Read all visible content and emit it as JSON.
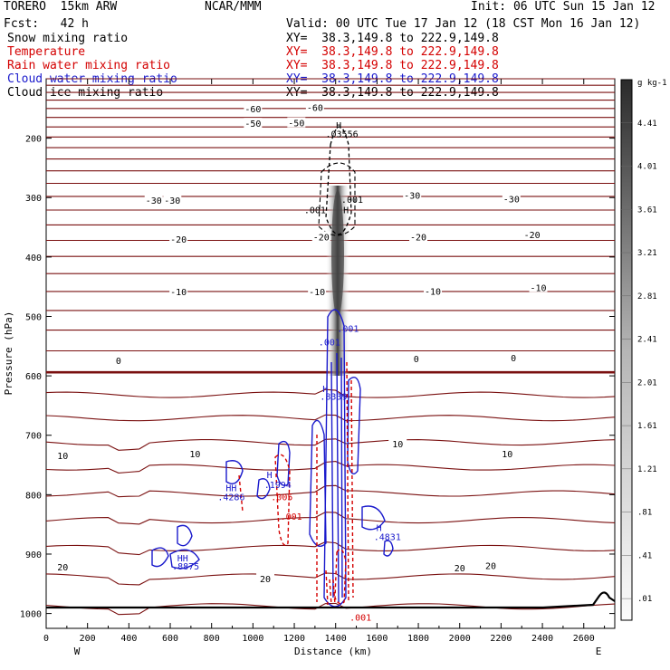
{
  "header": {
    "model": "TORERO  15km ARW",
    "org": "NCAR/MMM",
    "init": "Init: 06 UTC Sun 15 Jan 12",
    "fcst": "Fcst:   42 h",
    "valid": "Valid: 00 UTC Tue 17 Jan 12 (18 CST Mon 16 Jan 12)"
  },
  "legend": [
    {
      "label": "Snow mixing ratio",
      "xy": "XY=  38.3,149.8 to 222.9,149.8",
      "color": "#000000"
    },
    {
      "label": "Temperature",
      "xy": "XY=  38.3,149.8 to 222.9,149.8",
      "color": "#d40000"
    },
    {
      "label": "Rain water mixing ratio",
      "xy": "XY=  38.3,149.8 to 222.9,149.8",
      "color": "#d40000"
    },
    {
      "label": "Cloud water mixing ratio",
      "xy": "XY=  38.3,149.8 to 222.9,149.8",
      "color": "#1a1acc"
    },
    {
      "label": "Cloud ice mixing ratio",
      "xy": "XY=  38.3,149.8 to 222.9,149.8",
      "color": "#000000"
    }
  ],
  "chart_data": {
    "type": "cross-section contour",
    "xlabel": "Distance (km)",
    "ylabel": "Pressure (hPa)",
    "x_ticks": [
      0,
      200,
      400,
      600,
      800,
      1000,
      1200,
      1400,
      1600,
      1800,
      2000,
      2200,
      2400,
      2600
    ],
    "x_range": [
      0,
      2750
    ],
    "y_ticks": [
      200,
      300,
      400,
      500,
      600,
      700,
      800,
      900,
      1000
    ],
    "y_range": [
      100,
      1025
    ],
    "x_end_labels": {
      "left": "W",
      "right": "E"
    },
    "colorbar": {
      "units": "g kg-1",
      "ticks": [
        ".01",
        ".41",
        ".81",
        "1.21",
        "1.61",
        "2.01",
        "2.41",
        "2.81",
        "3.21",
        "3.61",
        "4.01",
        "4.41"
      ]
    },
    "temperature_labels": [
      {
        "text": "-60",
        "x": 1000,
        "p": 150
      },
      {
        "text": "-60",
        "x": 1300,
        "p": 148
      },
      {
        "text": "-50",
        "x": 1000,
        "p": 175
      },
      {
        "text": "-50",
        "x": 1210,
        "p": 174
      },
      {
        "text": "-30",
        "x": 520,
        "p": 304
      },
      {
        "text": "-30",
        "x": 610,
        "p": 304
      },
      {
        "text": "-30",
        "x": 1770,
        "p": 296
      },
      {
        "text": "-30",
        "x": 2250,
        "p": 302
      },
      {
        "text": "-20",
        "x": 640,
        "p": 370
      },
      {
        "text": "-20",
        "x": 1330,
        "p": 366
      },
      {
        "text": "-20",
        "x": 1800,
        "p": 366
      },
      {
        "text": "-20",
        "x": 2350,
        "p": 362
      },
      {
        "text": "-10",
        "x": 640,
        "p": 458
      },
      {
        "text": "-10",
        "x": 1310,
        "p": 458
      },
      {
        "text": "-10",
        "x": 1870,
        "p": 457
      },
      {
        "text": "-10",
        "x": 2380,
        "p": 451
      },
      {
        "text": "0",
        "x": 350,
        "p": 574
      },
      {
        "text": "0",
        "x": 1790,
        "p": 571
      },
      {
        "text": "0",
        "x": 2260,
        "p": 569
      },
      {
        "text": "10",
        "x": 80,
        "p": 734
      },
      {
        "text": "10",
        "x": 720,
        "p": 731
      },
      {
        "text": "10",
        "x": 1700,
        "p": 714
      },
      {
        "text": "10",
        "x": 2230,
        "p": 731
      },
      {
        "text": "20",
        "x": 80,
        "p": 921
      },
      {
        "text": "20",
        "x": 1060,
        "p": 941
      },
      {
        "text": "20",
        "x": 2000,
        "p": 923
      },
      {
        "text": "20",
        "x": 2150,
        "p": 919
      }
    ],
    "annotations": [
      {
        "text": "H",
        "x": 1415,
        "p": 178,
        "color": "#000000"
      },
      {
        "text": ".03556",
        "x": 1430,
        "p": 192,
        "color": "#000000"
      },
      {
        "text": ".001",
        "x": 1300,
        "p": 320,
        "color": "#000000"
      },
      {
        "text": ".001",
        "x": 1480,
        "p": 303,
        "color": "#000000"
      },
      {
        "text": "H",
        "x": 1450,
        "p": 320,
        "color": "#000000"
      },
      {
        "text": ".001",
        "x": 1460,
        "p": 520,
        "color": "#1a1acc"
      },
      {
        "text": ".001",
        "x": 1370,
        "p": 543,
        "color": "#1a1acc"
      },
      {
        "text": "H",
        "x": 1350,
        "p": 621,
        "color": "#1a1acc"
      },
      {
        "text": ".8339",
        "x": 1390,
        "p": 634,
        "color": "#1a1acc"
      },
      {
        "text": "H",
        "x": 1080,
        "p": 766,
        "color": "#1a1acc"
      },
      {
        "text": ".1994",
        "x": 1120,
        "p": 783,
        "color": "#1a1acc"
      },
      {
        "text": "HH",
        "x": 895,
        "p": 788,
        "color": "#1a1acc"
      },
      {
        "text": ".4286",
        "x": 895,
        "p": 803,
        "color": "#1a1acc"
      },
      {
        "text": ".005",
        "x": 1140,
        "p": 803,
        "color": "#d40000"
      },
      {
        "text": ".001",
        "x": 1185,
        "p": 836,
        "color": "#d40000"
      },
      {
        "text": "H",
        "x": 1610,
        "p": 855,
        "color": "#1a1acc"
      },
      {
        "text": ".4831",
        "x": 1650,
        "p": 870,
        "color": "#1a1acc"
      },
      {
        "text": "HH",
        "x": 660,
        "p": 906,
        "color": "#1a1acc"
      },
      {
        "text": ".8875",
        "x": 675,
        "p": 920,
        "color": "#1a1acc"
      },
      {
        "text": ".001",
        "x": 1520,
        "p": 1006,
        "color": "#d40000"
      }
    ]
  }
}
